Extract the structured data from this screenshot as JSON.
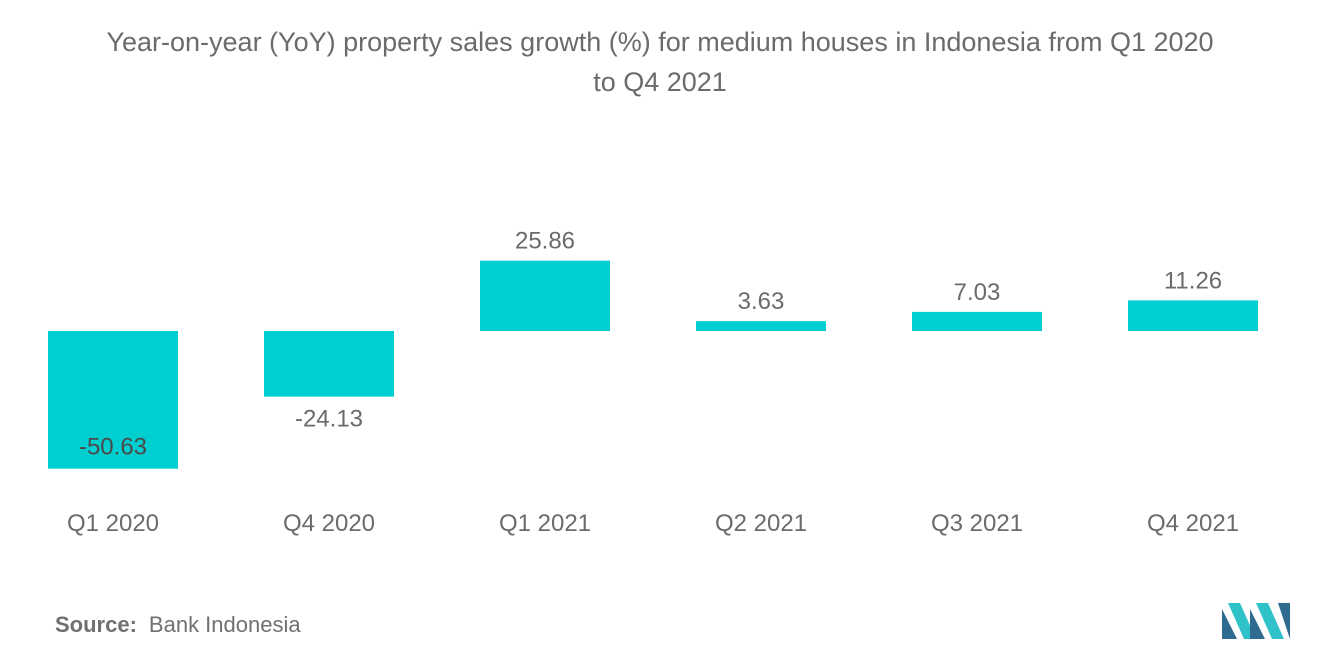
{
  "chart_data": {
    "type": "bar",
    "title": "Year-on-year (YoY) property sales growth (%) for medium houses in Indonesia from Q1 2020 to Q4 2021",
    "title_lines": [
      "Year-on-year (YoY) property sales growth (%) for medium houses in Indonesia from Q1 2020",
      "to Q4 2021"
    ],
    "categories": [
      "Q1 2020",
      "Q4 2020",
      "Q1 2021",
      "Q2 2021",
      "Q3 2021",
      "Q4 2021"
    ],
    "values": [
      -50.63,
      -24.13,
      25.86,
      3.63,
      7.03,
      11.26
    ],
    "value_labels": [
      "-50.63",
      "-24.13",
      "25.86",
      "3.63",
      "7.03",
      "11.26"
    ],
    "xlabel": "",
    "ylabel": "",
    "ylim": [
      -50.63,
      25.86
    ],
    "grid": false,
    "legend": "none",
    "bar_color": "#00CFD1"
  },
  "source": {
    "label": "Source:",
    "value": "Bank Indonesia"
  },
  "colors": {
    "text": "#6b6b6b",
    "logo_dark": "#2E6B8F",
    "logo_light": "#2FC3C9"
  }
}
